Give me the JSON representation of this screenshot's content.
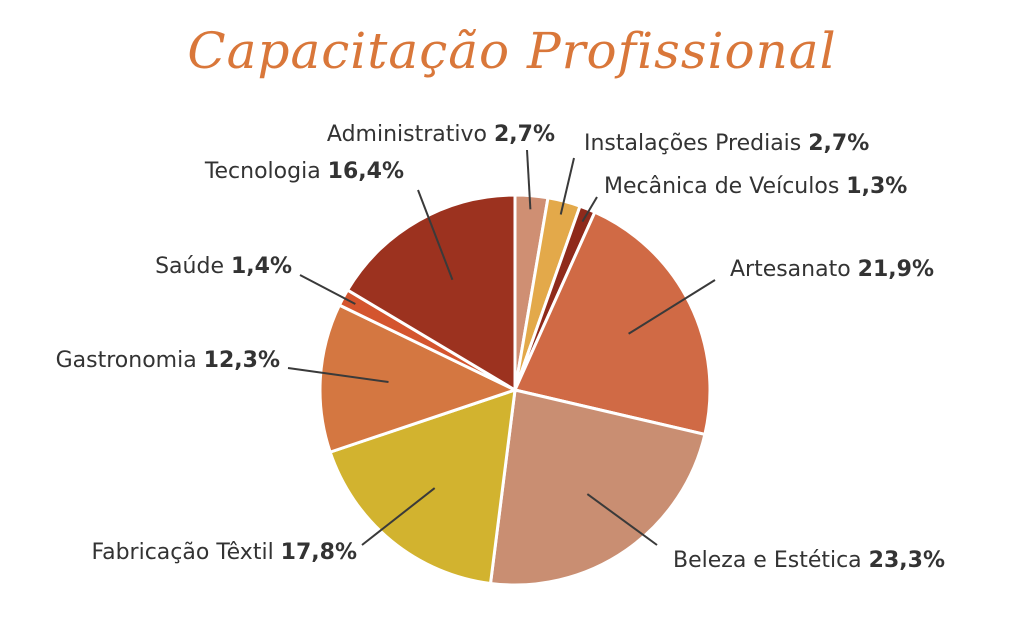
{
  "chart_data": {
    "type": "pie",
    "title": "Capacitação Profissional",
    "slices": [
      {
        "label": "Administrativo",
        "value": 2.7,
        "pct_label": "2,7%",
        "color": "#cf8f73"
      },
      {
        "label": "Instalações Prediais",
        "value": 2.7,
        "pct_label": "2,7%",
        "color": "#e3a94a"
      },
      {
        "label": "Mecânica de Veículos",
        "value": 1.3,
        "pct_label": "1,3%",
        "color": "#8f2a1b"
      },
      {
        "label": "Artesanato",
        "value": 21.9,
        "pct_label": "21,9%",
        "color": "#d06a45"
      },
      {
        "label": "Beleza e Estética",
        "value": 23.3,
        "pct_label": "23,3%",
        "color": "#c98e72"
      },
      {
        "label": "Fabricação Têxtil",
        "value": 17.8,
        "pct_label": "17,8%",
        "color": "#d2b32f"
      },
      {
        "label": "Gastronomia",
        "value": 12.3,
        "pct_label": "12,3%",
        "color": "#d47741"
      },
      {
        "label": "Saúde",
        "value": 1.4,
        "pct_label": "1,4%",
        "color": "#d4552e"
      },
      {
        "label": "Tecnologia",
        "value": 16.4,
        "pct_label": "16,4%",
        "color": "#9c321f"
      }
    ]
  }
}
